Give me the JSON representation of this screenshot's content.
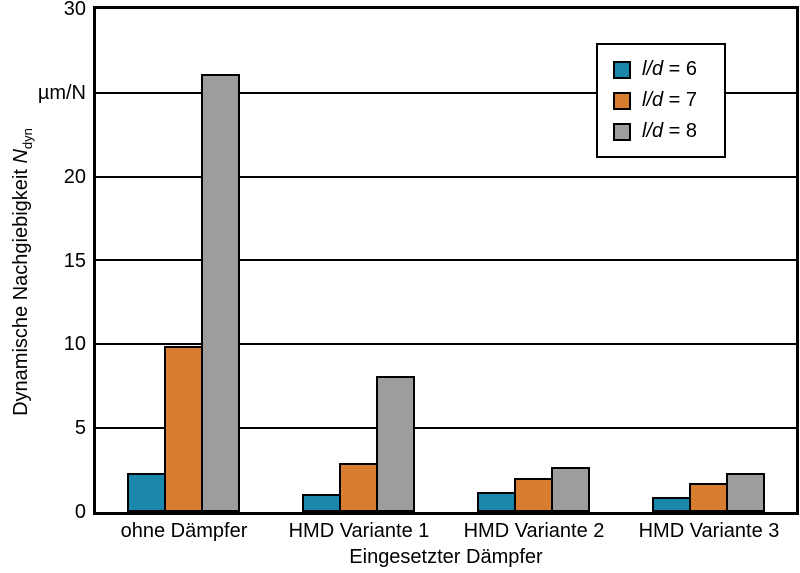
{
  "figure": {
    "background": "#ffffff",
    "line_color": "#000000"
  },
  "chart_data": {
    "type": "bar",
    "title": "",
    "categories": [
      "ohne Dämpfer",
      "HMD Variante 1",
      "HMD Variante 2",
      "HMD Variante 3"
    ],
    "series": [
      {
        "name": "l/d = 6",
        "name_italic": "l/d",
        "name_rest": " = 6",
        "color": "#1b87ab",
        "values": [
          2.3,
          1.1,
          1.2,
          0.9
        ]
      },
      {
        "name": "l/d = 7",
        "name_italic": "l/d",
        "name_rest": " = 7",
        "color": "#d87c30",
        "values": [
          9.9,
          2.9,
          2.0,
          1.7
        ]
      },
      {
        "name": "l/d = 8",
        "name_italic": "l/d",
        "name_rest": " = 8",
        "color": "#9e9c9d",
        "values": [
          26.1,
          8.1,
          2.7,
          2.3
        ]
      }
    ],
    "xlabel": "Eingesetzter Dämpfer",
    "ylabel_text": "Dynamische Nachgiebigkeit",
    "ylabel_symbol": "N",
    "ylabel_symbol_sub": "dyn",
    "y_unit": "µm/N",
    "ylim": [
      0,
      30
    ],
    "ytick_step": 5,
    "yticks": [
      {
        "value": 0,
        "label": "0"
      },
      {
        "value": 5,
        "label": "5"
      },
      {
        "value": 10,
        "label": "10"
      },
      {
        "value": 15,
        "label": "15"
      },
      {
        "value": 20,
        "label": "20"
      },
      {
        "value": 25,
        "label": "µm/N",
        "is_unit": true
      },
      {
        "value": 30,
        "label": "30"
      }
    ],
    "grid": true,
    "legend_position": "top-right"
  }
}
